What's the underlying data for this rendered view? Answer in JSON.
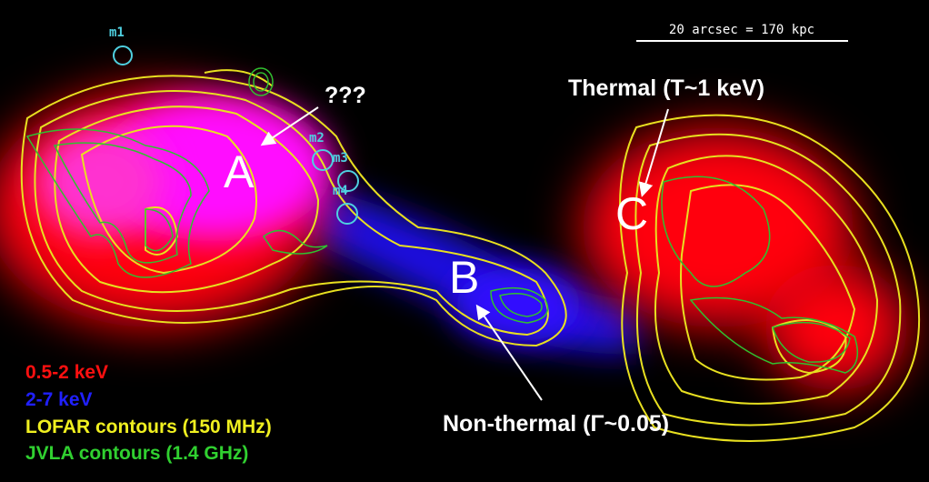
{
  "scale_bar": "20 arcsec = 170 kpc",
  "markers": [
    "m1",
    "m2",
    "m3",
    "m4"
  ],
  "regions": [
    "A",
    "B",
    "C"
  ],
  "annotations": {
    "unknown": "???",
    "thermal": "Thermal (T~1 keV)",
    "non_thermal": "Non-thermal (Γ~0.05)"
  },
  "legend": [
    "0.5-2 keV",
    "2-7 keV",
    "LOFAR contours (150 MHz)",
    "JVLA contours (1.4 GHz)"
  ]
}
